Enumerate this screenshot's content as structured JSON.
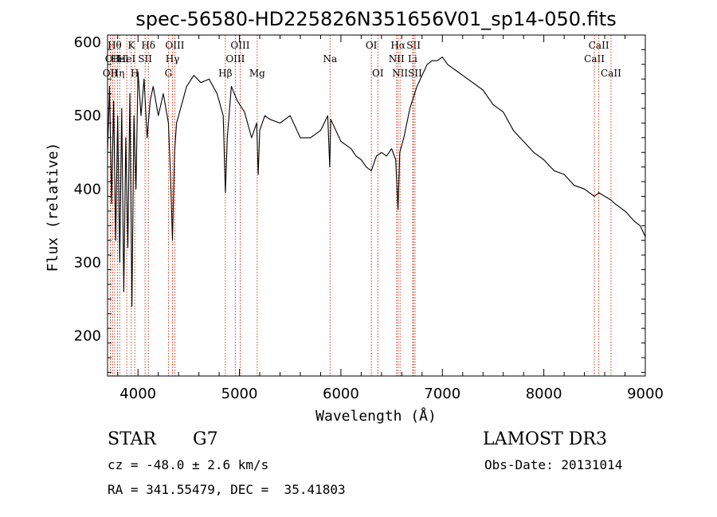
{
  "chart_data": {
    "type": "line",
    "title": "spec-56580-HD225826N351656V01_sp14-050.fits",
    "xlabel": "Wavelength (Å)",
    "ylabel": "Flux (relative)",
    "xlim": [
      3700,
      9000
    ],
    "ylim": [
      145,
      610
    ],
    "xticks": [
      4000,
      5000,
      6000,
      7000,
      8000,
      9000
    ],
    "yticks": [
      200,
      300,
      400,
      500,
      600
    ],
    "line_color": "#000000",
    "marker_color": "#cc2200",
    "series": [
      {
        "x": [
          3700,
          3720,
          3740,
          3760,
          3780,
          3800,
          3820,
          3840,
          3860,
          3880,
          3900,
          3920,
          3940,
          3960,
          3980,
          4000,
          4030,
          4060,
          4090,
          4120,
          4150,
          4200,
          4250,
          4300,
          4320,
          4340,
          4360,
          4380,
          4420,
          4480,
          4550,
          4620,
          4700,
          4780,
          4840,
          4861,
          4880,
          4920,
          4980,
          5050,
          5120,
          5170,
          5185,
          5200,
          5250,
          5300,
          5400,
          5500,
          5600,
          5700,
          5800,
          5870,
          5890,
          5900,
          5950,
          6000,
          6050,
          6100,
          6150,
          6200,
          6250,
          6300,
          6350,
          6400,
          6450,
          6500,
          6540,
          6563,
          6580,
          6620,
          6680,
          6750,
          6800,
          6850,
          6900,
          6950,
          7000,
          7050,
          7100,
          7150,
          7200,
          7300,
          7400,
          7500,
          7600,
          7700,
          7800,
          7900,
          8000,
          8100,
          8200,
          8300,
          8400,
          8498,
          8542,
          8600,
          8662,
          8700,
          8800,
          8900,
          8950,
          9000
        ],
        "y": [
          450,
          540,
          380,
          520,
          330,
          500,
          300,
          510,
          260,
          470,
          320,
          530,
          240,
          500,
          400,
          560,
          500,
          550,
          470,
          520,
          540,
          500,
          530,
          490,
          420,
          330,
          450,
          490,
          510,
          540,
          555,
          545,
          550,
          530,
          500,
          395,
          470,
          540,
          520,
          505,
          470,
          490,
          420,
          480,
          500,
          495,
          490,
          500,
          470,
          470,
          480,
          500,
          430,
          495,
          480,
          465,
          460,
          455,
          445,
          440,
          430,
          425,
          445,
          450,
          445,
          455,
          440,
          372,
          450,
          470,
          510,
          540,
          555,
          570,
          575,
          575,
          580,
          570,
          565,
          560,
          555,
          545,
          535,
          515,
          505,
          480,
          465,
          450,
          440,
          425,
          420,
          405,
          400,
          390,
          395,
          390,
          385,
          380,
          370,
          355,
          350,
          335
        ]
      }
    ],
    "line_markers": [
      {
        "x": 3727,
        "label": "OII",
        "row": 3
      },
      {
        "x": 3750,
        "label": "OII",
        "row": 2
      },
      {
        "x": 3770,
        "label": "Hθ",
        "row": 1
      },
      {
        "x": 3798,
        "label": "Hη",
        "row": 3
      },
      {
        "x": 3820,
        "label": "HeI",
        "row": 2
      },
      {
        "x": 3889,
        "label": "HeI",
        "row": 2
      },
      {
        "x": 3934,
        "label": "K",
        "row": 1
      },
      {
        "x": 3968,
        "label": "H",
        "row": 3
      },
      {
        "x": 4070,
        "label": "SII",
        "row": 2
      },
      {
        "x": 4102,
        "label": "Hδ",
        "row": 1
      },
      {
        "x": 4300,
        "label": "G",
        "row": 3
      },
      {
        "x": 4340,
        "label": "Hγ",
        "row": 2
      },
      {
        "x": 4363,
        "label": "OIII",
        "row": 1
      },
      {
        "x": 4861,
        "label": "Hβ",
        "row": 3
      },
      {
        "x": 4959,
        "label": "OIII",
        "row": 2
      },
      {
        "x": 5007,
        "label": "OIII",
        "row": 1
      },
      {
        "x": 5175,
        "label": "Mg",
        "row": 3
      },
      {
        "x": 5893,
        "label": "Na",
        "row": 2
      },
      {
        "x": 6300,
        "label": "OI",
        "row": 1
      },
      {
        "x": 6364,
        "label": "OI",
        "row": 3
      },
      {
        "x": 6548,
        "label": "NII",
        "row": 2
      },
      {
        "x": 6563,
        "label": "Hα",
        "row": 1
      },
      {
        "x": 6583,
        "label": "NII",
        "row": 3
      },
      {
        "x": 6707,
        "label": "Li",
        "row": 2
      },
      {
        "x": 6716,
        "label": "SII",
        "row": 1
      },
      {
        "x": 6731,
        "label": "SII",
        "row": 3
      },
      {
        "x": 8498,
        "label": "CaII",
        "row": 2
      },
      {
        "x": 8542,
        "label": "CaII",
        "row": 1
      },
      {
        "x": 8662,
        "label": "CaII",
        "row": 3
      }
    ]
  },
  "info": {
    "object_class": "STAR",
    "subclass": "G7",
    "survey": "LAMOST DR3",
    "cz": "cz = -48.0 ± 2.6 km/s",
    "obs_date": "Obs-Date: 20131014",
    "coords": "RA = 341.55479, DEC =  35.41803"
  }
}
